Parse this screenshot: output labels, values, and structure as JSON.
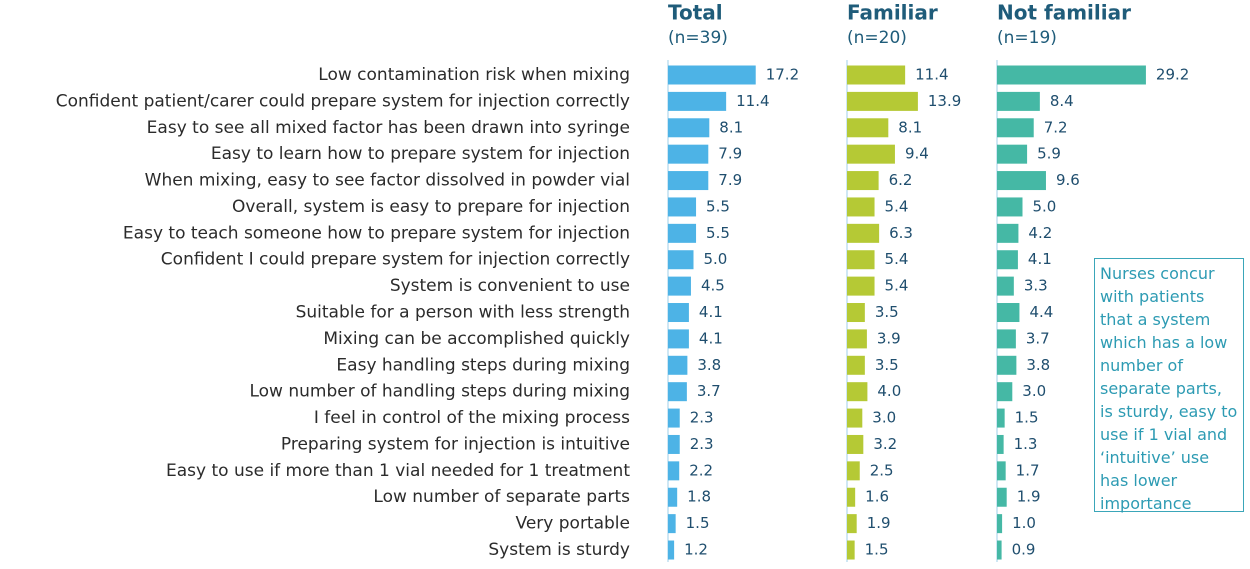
{
  "chart_data": {
    "type": "bar",
    "categories": [
      "Low contamination risk when mixing",
      "Confident patient/carer could prepare system for injection correctly",
      "Easy to see all mixed factor has been drawn into syringe",
      "Easy to learn how to prepare system for injection",
      "When mixing, easy to see factor dissolved in powder vial",
      "Overall, system is easy to prepare for injection",
      "Easy to teach someone how to prepare system for injection",
      "Confident I could prepare system for injection correctly",
      "System is convenient to use",
      "Suitable for a person with less strength",
      "Mixing can be accomplished quickly",
      "Easy handling steps during mixing",
      "Low number of handling steps during mixing",
      "I feel in control of the mixing process",
      "Preparing system for injection is intuitive",
      "Easy to use if more than 1 vial needed for 1 treatment",
      "Low number of separate parts",
      "Very portable",
      "System is sturdy"
    ],
    "series": [
      {
        "name": "Total",
        "sample": "(n=39)",
        "color": "#4db3e6",
        "values": [
          17.2,
          11.4,
          8.1,
          7.9,
          7.9,
          5.5,
          5.5,
          5.0,
          4.5,
          4.1,
          4.1,
          3.8,
          3.7,
          2.3,
          2.3,
          2.2,
          1.8,
          1.5,
          1.2
        ],
        "value_labels": [
          "17.2",
          "11.4",
          "8.1",
          "7.9",
          "7.9",
          "5.5",
          "5.5",
          "5.0",
          "4.5",
          "4.1",
          "4.1",
          "3.8",
          "3.7",
          "2.3",
          "2.3",
          "2.2",
          "1.8",
          "1.5",
          "1.2"
        ]
      },
      {
        "name": "Familiar",
        "sample": "(n=20)",
        "color": "#b5c935",
        "values": [
          11.4,
          13.9,
          8.1,
          9.4,
          6.2,
          5.4,
          6.3,
          5.4,
          5.4,
          3.5,
          3.9,
          3.5,
          4.0,
          3.0,
          3.2,
          2.5,
          1.6,
          1.9,
          1.5
        ],
        "value_labels": [
          "11.4",
          "13.9",
          "8.1",
          "9.4",
          "6.2",
          "5.4",
          "6.3",
          "5.4",
          "5.4",
          "3.5",
          "3.9",
          "3.5",
          "4.0",
          "3.0",
          "3.2",
          "2.5",
          "1.6",
          "1.9",
          "1.5"
        ]
      },
      {
        "name": "Not familiar",
        "sample": "(n=19)",
        "color": "#45b8a5",
        "values": [
          29.2,
          8.4,
          7.2,
          5.9,
          9.6,
          5.0,
          4.2,
          4.1,
          3.3,
          4.4,
          3.7,
          3.8,
          3.0,
          1.5,
          1.3,
          1.7,
          1.9,
          1.0,
          0.9
        ],
        "value_labels": [
          "29.2",
          "8.4",
          "7.2",
          "5.9",
          "9.6",
          "5.0",
          "4.2",
          "4.1",
          "3.3",
          "4.4",
          "3.7",
          "3.8",
          "3.0",
          "1.5",
          "1.3",
          "1.7",
          "1.9",
          "1.0",
          "0.9"
        ]
      }
    ],
    "annotation": "Nurses concur with patients that a system which has a low number of separate parts, is sturdy, easy to use if 1 vial and ‘intuitive’ use has lower importance"
  }
}
